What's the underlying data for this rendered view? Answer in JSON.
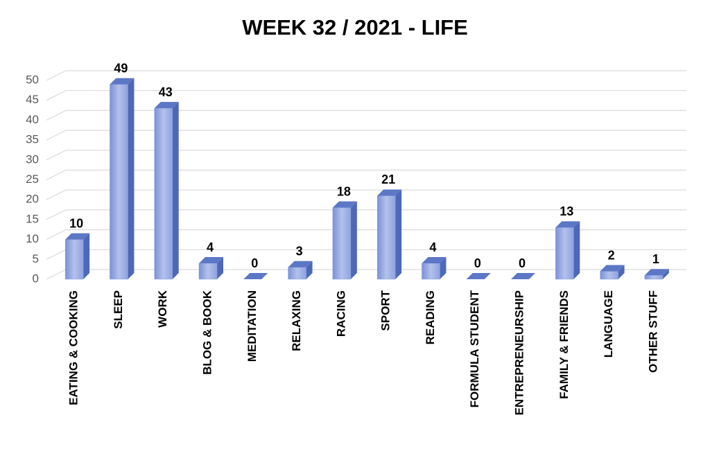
{
  "chart_data": {
    "type": "bar3d",
    "title": "WEEK 32  / 2021 - LIFE",
    "categories": [
      "EATING & COOKING",
      "SLEEP",
      "WORK",
      "BLOG & BOOK",
      "MEDITATION",
      "RELAXING",
      "RACING",
      "SPORT",
      "READING",
      "FORMULA STUDENT",
      "ENTREPRENEURSHIP",
      "FAMILY & FRIENDS",
      "LANGUAGE",
      "OTHER STUFF"
    ],
    "values": [
      10,
      49,
      43,
      4,
      0,
      3,
      18,
      21,
      4,
      0,
      0,
      13,
      2,
      1
    ],
    "color": "#8fa3de",
    "ylim": [
      0,
      50
    ],
    "yticks": [
      0,
      5,
      10,
      15,
      20,
      25,
      30,
      35,
      40,
      45,
      50
    ],
    "grid": true
  }
}
